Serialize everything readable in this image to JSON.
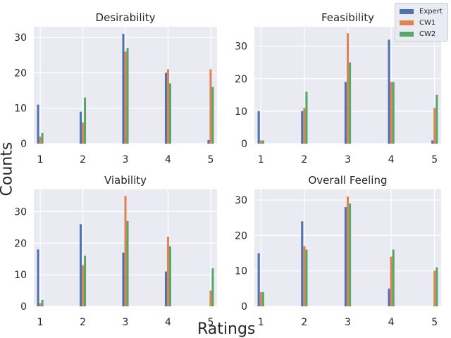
{
  "figure": {
    "ylabel": "Counts",
    "xlabel": "Ratings"
  },
  "legend": [
    {
      "name": "Expert",
      "color": "#4c72b0"
    },
    {
      "name": "CW1",
      "color": "#dd8452"
    },
    {
      "name": "CW2",
      "color": "#55a868"
    }
  ],
  "chart_data": [
    {
      "type": "bar",
      "title": "Desirability",
      "categories": [
        "1",
        "2",
        "3",
        "4",
        "5"
      ],
      "ylim": [
        0,
        33
      ],
      "yticks": [
        0,
        10,
        20,
        30
      ],
      "series": [
        {
          "name": "Expert",
          "values": [
            11,
            9,
            31,
            20,
            1
          ]
        },
        {
          "name": "CW1",
          "values": [
            2,
            6,
            26,
            21,
            21
          ]
        },
        {
          "name": "CW2",
          "values": [
            3,
            13,
            27,
            17,
            16
          ]
        }
      ]
    },
    {
      "type": "bar",
      "title": "Feasibility",
      "categories": [
        "1",
        "2",
        "3",
        "4",
        "5"
      ],
      "ylim": [
        0,
        36
      ],
      "yticks": [
        0,
        10,
        20,
        30
      ],
      "series": [
        {
          "name": "Expert",
          "values": [
            10,
            10,
            19,
            32,
            1
          ]
        },
        {
          "name": "CW1",
          "values": [
            1,
            11,
            34,
            19,
            11
          ]
        },
        {
          "name": "CW2",
          "values": [
            1,
            16,
            25,
            19,
            15
          ]
        }
      ]
    },
    {
      "type": "bar",
      "title": "Viability",
      "categories": [
        "1",
        "2",
        "3",
        "4",
        "5"
      ],
      "ylim": [
        0,
        37
      ],
      "yticks": [
        0,
        10,
        20,
        30
      ],
      "series": [
        {
          "name": "Expert",
          "values": [
            18,
            26,
            17,
            11,
            0
          ]
        },
        {
          "name": "CW1",
          "values": [
            1,
            13,
            35,
            22,
            5
          ]
        },
        {
          "name": "CW2",
          "values": [
            2,
            16,
            27,
            19,
            12
          ]
        }
      ]
    },
    {
      "type": "bar",
      "title": "Overall Feeling",
      "categories": [
        "1",
        "2",
        "3",
        "4",
        "5"
      ],
      "ylim": [
        0,
        33
      ],
      "yticks": [
        0,
        10,
        20,
        30
      ],
      "series": [
        {
          "name": "Expert",
          "values": [
            15,
            24,
            28,
            5,
            0
          ]
        },
        {
          "name": "CW1",
          "values": [
            4,
            17,
            31,
            14,
            10
          ]
        },
        {
          "name": "CW2",
          "values": [
            4,
            16,
            29,
            16,
            11
          ]
        }
      ]
    }
  ]
}
